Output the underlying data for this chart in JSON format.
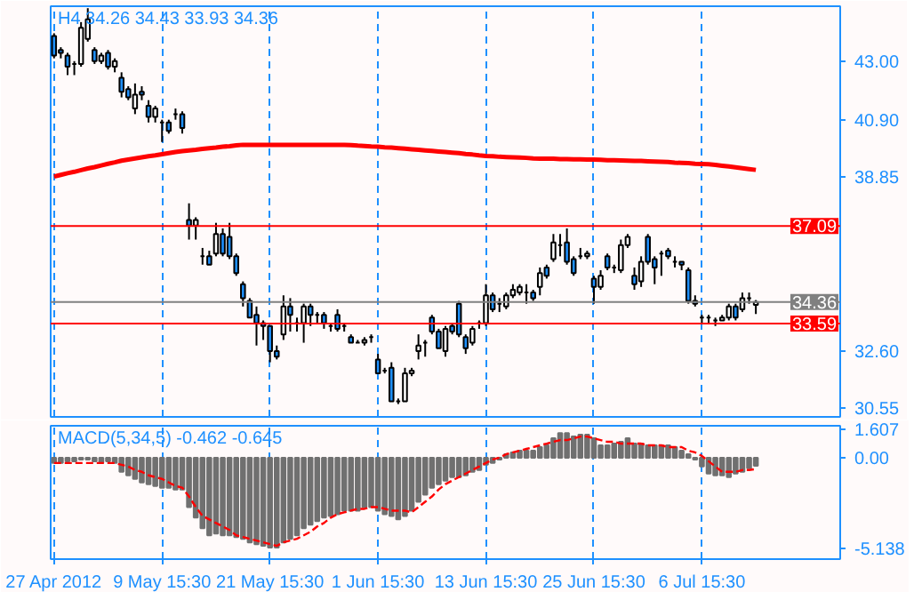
{
  "chart_data": [
    {
      "type": "candlestick",
      "title": "H4 34.26 34.43 33.93 34.36",
      "categories": [
        null,
        null,
        null,
        null,
        null,
        null,
        null,
        null,
        null,
        null,
        null,
        null,
        null,
        null,
        null,
        null,
        null,
        null,
        null,
        null,
        null,
        null,
        null,
        null,
        null,
        null,
        null,
        null,
        null,
        null,
        null,
        null,
        null,
        null,
        null,
        null,
        null,
        null,
        null,
        null,
        null,
        null,
        null,
        null,
        null,
        null,
        null,
        null,
        null,
        null,
        null,
        null,
        null,
        null,
        null,
        null,
        null,
        null,
        null,
        null,
        null,
        null,
        null,
        null,
        null,
        null,
        null,
        null,
        null,
        null,
        null,
        null,
        null,
        null,
        null,
        null,
        null,
        null,
        null,
        null,
        null,
        null,
        null,
        null,
        null,
        null,
        null,
        null,
        null,
        null,
        null,
        null,
        null,
        null,
        null,
        null,
        null,
        null,
        null,
        null,
        null,
        null,
        null,
        null,
        null,
        null,
        null,
        null,
        null,
        null,
        null,
        null,
        null,
        null,
        null,
        null,
        null
      ],
      "ohlc": [
        [
          43.9,
          44.0,
          43.1,
          43.2
        ],
        [
          43.4,
          43.5,
          43.1,
          43.3
        ],
        [
          43.2,
          43.3,
          42.5,
          42.8
        ],
        [
          42.9,
          43.0,
          42.5,
          42.9
        ],
        [
          42.9,
          44.4,
          42.8,
          44.2
        ],
        [
          43.8,
          44.9,
          43.7,
          44.5
        ],
        [
          43.4,
          43.5,
          42.9,
          43.0
        ],
        [
          43.0,
          43.3,
          42.9,
          43.2
        ],
        [
          43.3,
          43.4,
          42.7,
          42.8
        ],
        [
          42.8,
          43.1,
          42.6,
          43.0
        ],
        [
          42.4,
          42.6,
          41.7,
          41.9
        ],
        [
          42.0,
          42.1,
          41.6,
          41.7
        ],
        [
          41.3,
          42.2,
          41.1,
          41.8
        ],
        [
          41.9,
          42.1,
          41.6,
          41.8
        ],
        [
          41.4,
          41.6,
          40.8,
          41.0
        ],
        [
          41.0,
          41.4,
          40.8,
          41.3
        ],
        [
          40.8,
          40.9,
          40.1,
          40.8
        ],
        [
          40.8,
          40.9,
          40.4,
          40.5
        ],
        [
          41.1,
          41.3,
          40.9,
          41.1
        ],
        [
          41.1,
          41.2,
          40.4,
          40.6
        ],
        [
          37.3,
          37.9,
          36.6,
          37.1
        ],
        [
          37.1,
          37.4,
          36.6,
          37.3
        ],
        [
          36.0,
          36.3,
          35.7,
          36.0
        ],
        [
          36.0,
          36.2,
          35.7,
          35.7
        ],
        [
          36.1,
          37.2,
          36.0,
          36.8
        ],
        [
          36.8,
          37.0,
          36.0,
          36.1
        ],
        [
          36.7,
          37.2,
          35.9,
          36.0
        ],
        [
          36.0,
          36.1,
          35.3,
          35.4
        ],
        [
          35.0,
          35.1,
          34.2,
          34.5
        ],
        [
          34.4,
          34.5,
          33.8,
          33.8
        ],
        [
          33.9,
          34.2,
          32.8,
          33.6
        ],
        [
          33.6,
          33.7,
          33.0,
          33.5
        ],
        [
          33.5,
          33.5,
          32.2,
          32.6
        ],
        [
          32.6,
          32.8,
          32.3,
          32.4
        ],
        [
          33.2,
          34.6,
          33.0,
          34.2
        ],
        [
          34.2,
          34.5,
          33.3,
          33.9
        ],
        [
          33.6,
          33.8,
          33.3,
          33.6
        ],
        [
          33.6,
          34.3,
          32.9,
          34.2
        ],
        [
          34.2,
          34.3,
          33.5,
          33.9
        ],
        [
          33.9,
          34.0,
          33.6,
          33.9
        ],
        [
          33.9,
          34.0,
          33.4,
          33.6
        ],
        [
          33.5,
          33.6,
          33.3,
          33.5
        ],
        [
          33.9,
          34.1,
          33.3,
          33.4
        ],
        [
          33.5,
          33.6,
          33.3,
          33.5
        ],
        [
          33.1,
          33.2,
          32.9,
          32.9
        ],
        [
          32.9,
          33.0,
          32.9,
          32.9
        ],
        [
          32.9,
          33.1,
          32.8,
          33.0
        ],
        [
          33.1,
          33.2,
          32.9,
          33.1
        ],
        [
          32.3,
          32.5,
          31.8,
          31.8
        ],
        [
          31.9,
          32.0,
          31.8,
          31.9
        ],
        [
          32.0,
          32.2,
          30.8,
          30.8
        ],
        [
          30.8,
          30.9,
          30.7,
          30.8
        ],
        [
          30.8,
          32.0,
          30.8,
          31.8
        ],
        [
          31.8,
          32.0,
          31.7,
          31.9
        ],
        [
          32.6,
          33.2,
          32.3,
          32.8
        ],
        [
          32.9,
          33.0,
          32.4,
          32.9
        ],
        [
          33.8,
          33.9,
          33.2,
          33.3
        ],
        [
          33.3,
          33.4,
          32.7,
          32.7
        ],
        [
          32.6,
          33.5,
          32.4,
          33.4
        ],
        [
          33.5,
          33.6,
          33.2,
          33.3
        ],
        [
          34.3,
          34.4,
          33.1,
          33.2
        ],
        [
          33.1,
          33.2,
          32.5,
          32.7
        ],
        [
          32.9,
          33.5,
          32.8,
          33.4
        ],
        [
          33.6,
          33.7,
          33.4,
          33.6
        ],
        [
          33.6,
          35.0,
          33.5,
          34.6
        ],
        [
          34.6,
          34.7,
          34.0,
          34.1
        ],
        [
          34.3,
          34.5,
          34.0,
          34.3
        ],
        [
          34.2,
          34.7,
          34.1,
          34.6
        ],
        [
          34.6,
          35.0,
          34.5,
          34.8
        ],
        [
          34.7,
          35.0,
          34.6,
          34.9
        ],
        [
          34.7,
          35.0,
          34.3,
          34.7
        ],
        [
          34.7,
          34.8,
          34.4,
          34.5
        ],
        [
          34.9,
          35.6,
          34.6,
          35.4
        ],
        [
          35.6,
          35.7,
          35.2,
          35.3
        ],
        [
          35.9,
          36.8,
          35.8,
          36.5
        ],
        [
          36.4,
          36.8,
          36.0,
          36.4
        ],
        [
          36.5,
          37.0,
          35.7,
          35.8
        ],
        [
          35.9,
          36.0,
          35.3,
          35.4
        ],
        [
          36.0,
          36.3,
          35.9,
          36.0
        ],
        [
          36.0,
          36.2,
          35.9,
          36.1
        ],
        [
          35.2,
          35.3,
          34.3,
          34.9
        ],
        [
          34.9,
          35.5,
          34.8,
          35.3
        ],
        [
          36.0,
          36.1,
          35.5,
          35.6
        ],
        [
          35.6,
          35.7,
          35.4,
          35.6
        ],
        [
          35.5,
          36.6,
          35.4,
          36.4
        ],
        [
          36.4,
          36.8,
          36.3,
          36.7
        ],
        [
          35.3,
          35.6,
          34.8,
          35.0
        ],
        [
          35.1,
          36.0,
          34.9,
          35.8
        ],
        [
          36.7,
          36.8,
          35.7,
          35.8
        ],
        [
          35.9,
          36.0,
          35.0,
          35.6
        ],
        [
          36.1,
          36.2,
          35.3,
          36.1
        ],
        [
          36.2,
          36.3,
          35.9,
          36.0
        ],
        [
          35.8,
          36.0,
          35.6,
          35.8
        ],
        [
          35.8,
          35.8,
          35.5,
          35.7
        ],
        [
          35.5,
          35.6,
          34.3,
          34.4
        ],
        [
          34.4,
          34.6,
          34.2,
          34.3
        ],
        [
          33.8,
          33.9,
          33.6,
          33.8
        ],
        [
          33.8,
          33.9,
          33.6,
          33.8
        ],
        [
          33.7,
          33.8,
          33.5,
          33.7
        ],
        [
          33.7,
          33.9,
          33.7,
          33.8
        ],
        [
          33.8,
          34.3,
          33.7,
          34.2
        ],
        [
          34.2,
          34.3,
          33.7,
          33.8
        ],
        [
          34.1,
          34.7,
          34.0,
          34.5
        ],
        [
          34.5,
          34.7,
          34.3,
          34.5
        ],
        [
          34.26,
          34.43,
          33.93,
          34.36
        ],
        null,
        null,
        null,
        null,
        null,
        null,
        null,
        null,
        null,
        null,
        null,
        null
      ],
      "colors": [
        "#1e90ff",
        "#1e90ff",
        "#1e90ff",
        "#000000",
        "#ffffff",
        "#ffffff",
        "#1e90ff",
        "#ffffff",
        "#1e90ff",
        "#ffffff",
        "#1e90ff",
        "#1e90ff",
        "#ffffff",
        "#1e90ff",
        "#1e90ff",
        "#ffffff",
        "#000000",
        "#1e90ff",
        "#000000",
        "#1e90ff",
        "#1e90ff",
        "#ffffff",
        "#000000",
        "#1e90ff",
        "#ffffff",
        "#1e90ff",
        "#1e90ff",
        "#1e90ff",
        "#1e90ff",
        "#1e90ff",
        "#1e90ff",
        "#1e90ff",
        "#1e90ff",
        "#1e90ff",
        "#ffffff",
        "#1e90ff",
        "#000000",
        "#ffffff",
        "#1e90ff",
        "#000000",
        "#1e90ff",
        "#000000",
        "#1e90ff",
        "#000000",
        "#1e90ff",
        "#000000",
        "#ffffff",
        "#000000",
        "#1e90ff",
        "#000000",
        "#1e90ff",
        "#000000",
        "#ffffff",
        "#ffffff",
        "#ffffff",
        "#000000",
        "#1e90ff",
        "#1e90ff",
        "#ffffff",
        "#1e90ff",
        "#1e90ff",
        "#1e90ff",
        "#ffffff",
        "#000000",
        "#ffffff",
        "#1e90ff",
        "#000000",
        "#ffffff",
        "#ffffff",
        "#ffffff",
        "#000000",
        "#1e90ff",
        "#ffffff",
        "#1e90ff",
        "#ffffff",
        "#000000",
        "#1e90ff",
        "#1e90ff",
        "#000000",
        "#ffffff",
        "#1e90ff",
        "#ffffff",
        "#1e90ff",
        "#000000",
        "#ffffff",
        "#ffffff",
        "#1e90ff",
        "#ffffff",
        "#1e90ff",
        "#1e90ff",
        "#000000",
        "#1e90ff",
        "#000000",
        "#1e90ff",
        "#1e90ff",
        "#1e90ff",
        "#000000",
        "#000000",
        "#000000",
        "#ffffff",
        "#ffffff",
        "#1e90ff",
        "#ffffff",
        "#000000",
        "#ffffff",
        null,
        null,
        null,
        null,
        null,
        null,
        null,
        null,
        null,
        null,
        null,
        null
      ],
      "series": [
        {
          "type": "line",
          "color": "#ff0000",
          "line_style": "solid",
          "values": [
            38.86,
            38.92,
            38.98,
            39.03,
            39.09,
            39.15,
            39.2,
            39.26,
            39.32,
            39.37,
            39.43,
            39.47,
            39.51,
            39.55,
            39.59,
            39.62,
            39.66,
            39.7,
            39.74,
            39.77,
            39.8,
            39.82,
            39.85,
            39.88,
            39.9,
            39.93,
            39.95,
            39.98,
            40.0,
            40.0,
            40.0,
            40.0,
            40.0,
            40.0,
            40.0,
            40.0,
            40.0,
            40.0,
            40.0,
            40.0,
            40.0,
            40.0,
            40.0,
            40.0,
            39.99,
            39.97,
            39.96,
            39.94,
            39.93,
            39.91,
            39.9,
            39.88,
            39.86,
            39.84,
            39.82,
            39.8,
            39.78,
            39.76,
            39.74,
            39.72,
            39.7,
            39.67,
            39.65,
            39.62,
            39.6,
            39.59,
            39.57,
            39.56,
            39.55,
            39.54,
            39.53,
            39.51,
            39.5,
            39.5,
            39.5,
            39.49,
            39.49,
            39.48,
            39.48,
            39.47,
            39.47,
            39.46,
            39.45,
            39.45,
            39.44,
            39.43,
            39.42,
            39.42,
            39.41,
            39.4,
            39.39,
            39.38,
            39.36,
            39.35,
            39.34,
            39.32,
            39.31,
            39.3,
            39.28,
            39.25,
            39.22,
            39.19,
            39.16,
            39.13,
            39.1,
            null,
            null,
            null,
            null,
            null,
            null,
            null,
            null,
            null,
            null,
            null,
            null
          ]
        }
      ],
      "ylim": [
        30.24,
        44.97
      ],
      "yticks": [
        {
          "value": 43,
          "label": "43.00"
        },
        {
          "value": 40.9,
          "label": "40.90"
        },
        38.85,
        {
          "value": 32.6,
          "label": "32.60"
        },
        30.55
      ],
      "ref_lines": [
        {
          "axis": "y",
          "value": 37.09,
          "label": "37.09",
          "color": "#ff0000"
        },
        {
          "axis": "y",
          "value": 34.36,
          "label": "34.36",
          "color": "#808080"
        },
        {
          "axis": "y",
          "value": 33.59,
          "label": "33.59",
          "color": "#ff0000"
        }
      ],
      "grid": "x",
      "tick_labels": "y"
    },
    {
      "type": "bar",
      "title": "MACD(5,34,5) -0.462 -0.645",
      "categories": [
        "27 Apr 2012",
        null,
        null,
        null,
        null,
        null,
        null,
        null,
        null,
        null,
        null,
        null,
        null,
        null,
        null,
        null,
        "9 May 15:30",
        null,
        null,
        null,
        null,
        null,
        null,
        null,
        null,
        null,
        null,
        null,
        null,
        null,
        null,
        null,
        "21 May 15:30",
        null,
        null,
        null,
        null,
        null,
        null,
        null,
        null,
        null,
        null,
        null,
        null,
        null,
        null,
        null,
        "1 Jun 15:30",
        null,
        null,
        null,
        null,
        null,
        null,
        null,
        null,
        null,
        null,
        null,
        null,
        null,
        null,
        null,
        "13 Jun 15:30",
        null,
        null,
        null,
        null,
        null,
        null,
        null,
        null,
        null,
        null,
        null,
        null,
        null,
        null,
        null,
        "25 Jun 15:30",
        null,
        null,
        null,
        null,
        null,
        null,
        null,
        null,
        null,
        null,
        null,
        null,
        null,
        null,
        null,
        "6 Jul 15:30",
        null,
        null,
        null,
        null,
        null,
        null,
        null,
        null,
        null,
        null,
        null,
        null,
        null,
        null,
        null,
        null,
        null,
        null,
        null,
        null
      ],
      "series": [
        {
          "type": "bar",
          "color": "#707070",
          "values": [
            -0.3,
            -0.3,
            -0.2,
            -0.2,
            -0.1,
            -0.1,
            -0.2,
            -0.3,
            -0.2,
            -0.3,
            -0.8,
            -1.0,
            -1.2,
            -1.4,
            -1.5,
            -1.6,
            -1.7,
            -1.7,
            -1.8,
            -1.8,
            -2.8,
            -3.4,
            -4.0,
            -4.4,
            -4.3,
            -4.4,
            -4.4,
            -4.5,
            -4.6,
            -4.8,
            -4.9,
            -5.0,
            -5.1,
            -5.1,
            -4.8,
            -4.6,
            -4.4,
            -4.0,
            -3.8,
            -3.6,
            -3.4,
            -3.3,
            -3.2,
            -3.0,
            -3.0,
            -3.0,
            -2.8,
            -2.8,
            -3.0,
            -3.2,
            -3.3,
            -3.5,
            -3.3,
            -3.0,
            -2.5,
            -2.1,
            -1.7,
            -1.5,
            -1.3,
            -1.1,
            -1.1,
            -1.0,
            -0.8,
            -0.7,
            -0.4,
            -0.3,
            -0.1,
            0.2,
            0.3,
            0.4,
            0.4,
            0.4,
            0.6,
            0.7,
            1.1,
            1.4,
            1.4,
            1.2,
            1.3,
            1.3,
            1.1,
            0.7,
            0.7,
            0.8,
            0.9,
            1.1,
            0.8,
            0.8,
            0.7,
            0.7,
            0.7,
            0.7,
            0.6,
            0.4,
            0.2,
            -0.1,
            -0.5,
            -0.9,
            -1.0,
            -1.0,
            -1.1,
            -0.9,
            -0.8,
            -0.6,
            -0.462,
            null,
            null,
            null,
            null,
            null,
            null,
            null,
            null,
            null,
            null,
            null,
            null
          ]
        },
        {
          "type": "line",
          "color": "#ff0000",
          "line_style": "dashed",
          "values": [
            -0.3,
            -0.3,
            -0.3,
            -0.3,
            -0.3,
            -0.3,
            -0.3,
            -0.3,
            -0.3,
            -0.3,
            -0.4,
            -0.5,
            -0.7,
            -0.8,
            -1.0,
            -1.1,
            -1.2,
            -1.4,
            -1.6,
            -1.7,
            -2.2,
            -2.8,
            -3.3,
            -3.5,
            -3.7,
            -3.9,
            -4.1,
            -4.4,
            -4.5,
            -4.6,
            -4.7,
            -4.8,
            -4.9,
            -5.0,
            -4.8,
            -4.7,
            -4.6,
            -4.4,
            -4.2,
            -3.9,
            -3.7,
            -3.4,
            -3.2,
            -3.1,
            -3.0,
            -2.9,
            -2.9,
            -2.8,
            -2.8,
            -2.9,
            -3.0,
            -3.0,
            -3.0,
            -3.1,
            -2.8,
            -2.5,
            -2.2,
            -1.8,
            -1.5,
            -1.3,
            -1.1,
            -0.9,
            -0.7,
            -0.5,
            -0.3,
            -0.1,
            0.0,
            0.2,
            0.3,
            0.4,
            0.5,
            0.6,
            0.7,
            0.8,
            0.9,
            1.0,
            1.0,
            1.1,
            1.2,
            1.2,
            1.1,
            1.0,
            0.9,
            0.9,
            0.8,
            0.8,
            0.8,
            0.8,
            0.7,
            0.7,
            0.7,
            0.6,
            0.6,
            0.6,
            0.4,
            0.3,
            0.1,
            -0.2,
            -0.5,
            -0.8,
            -0.8,
            -0.8,
            -0.7,
            -0.7,
            -0.645,
            null,
            null,
            null,
            null,
            null,
            null,
            null,
            null,
            null,
            null,
            null,
            null
          ]
        }
      ],
      "ylim": [
        -5.75,
        1.81
      ],
      "yticks": [
        1.607,
        {
          "value": 0,
          "label": "0.00"
        },
        -5.138
      ],
      "grid": "x"
    }
  ]
}
